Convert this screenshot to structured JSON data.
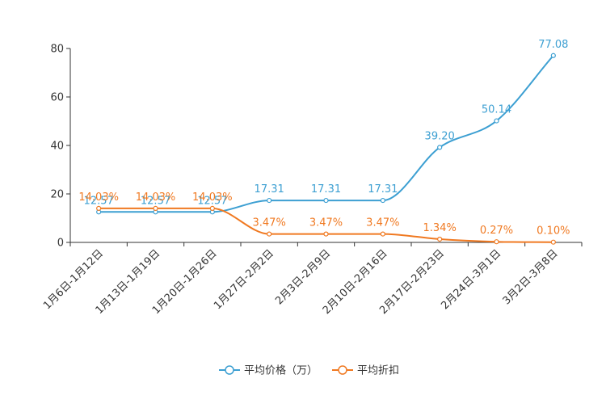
{
  "chart_data": {
    "type": "line",
    "categories": [
      "1月6日-1月12日",
      "1月13日-1月19日",
      "1月20日-1月26日",
      "1月27日-2月2日",
      "2月3日-2月9日",
      "2月10日-2月16日",
      "2月17日-2月23日",
      "2月24日-3月1日",
      "3月2日-3月8日"
    ],
    "ylim": [
      0,
      80
    ],
    "yticks": [
      0,
      20,
      40,
      60,
      80
    ],
    "series": [
      {
        "name": "平均价格（万）",
        "color": "#3c9fd2",
        "values": [
          12.57,
          12.57,
          12.57,
          17.31,
          17.31,
          17.31,
          39.2,
          50.14,
          77.08
        ],
        "labels": [
          "12.57",
          "12.57",
          "12.57",
          "17.31",
          "17.31",
          "17.31",
          "39.20",
          "50.14",
          "77.08"
        ]
      },
      {
        "name": "平均折扣",
        "color": "#f07921",
        "values": [
          14.03,
          14.03,
          14.03,
          3.47,
          3.47,
          3.47,
          1.34,
          0.27,
          0.1
        ],
        "labels": [
          "14.03%",
          "14.03%",
          "14.03%",
          "3.47%",
          "3.47%",
          "3.47%",
          "1.34%",
          "0.27%",
          "0.10%"
        ]
      }
    ]
  }
}
